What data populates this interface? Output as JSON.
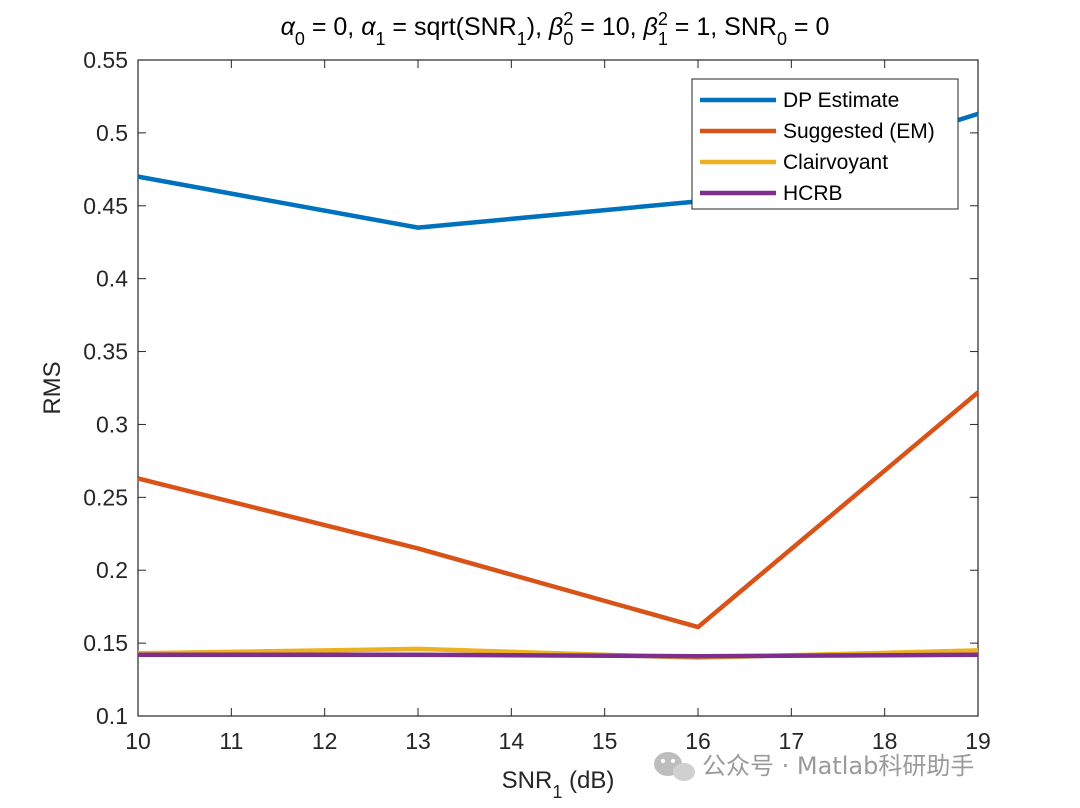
{
  "chart_data": {
    "type": "line",
    "title": "α0 = 0, α1 = sqrt(SNR1), β0² = 10, β1² = 1, SNR0 = 0",
    "xlabel": "SNR1 (dB)",
    "ylabel": "RMS",
    "x": [
      10,
      13,
      16,
      19
    ],
    "xlim": [
      10,
      19
    ],
    "ylim": [
      0.1,
      0.55
    ],
    "xticks": [
      "10",
      "11",
      "12",
      "13",
      "14",
      "15",
      "16",
      "17",
      "18",
      "19"
    ],
    "yticks": [
      "0.1",
      "0.15",
      "0.2",
      "0.25",
      "0.3",
      "0.35",
      "0.4",
      "0.45",
      "0.5",
      "0.55"
    ],
    "grid": false,
    "legend_position": "top-right",
    "series": [
      {
        "name": "DP Estimate",
        "color": "#0072BD",
        "values": [
          0.47,
          0.435,
          0.453,
          0.513
        ]
      },
      {
        "name": "Suggested (EM)",
        "color": "#D95319",
        "values": [
          0.263,
          0.215,
          0.161,
          0.322
        ]
      },
      {
        "name": "Clairvoyant",
        "color": "#EDB120",
        "values": [
          0.143,
          0.146,
          0.14,
          0.145
        ]
      },
      {
        "name": "HCRB",
        "color": "#7E2F8E",
        "values": [
          0.142,
          0.142,
          0.141,
          0.142
        ]
      }
    ]
  },
  "watermark": {
    "icon": "wechat-icon",
    "text": "公众号 · Matlab科研助手"
  }
}
